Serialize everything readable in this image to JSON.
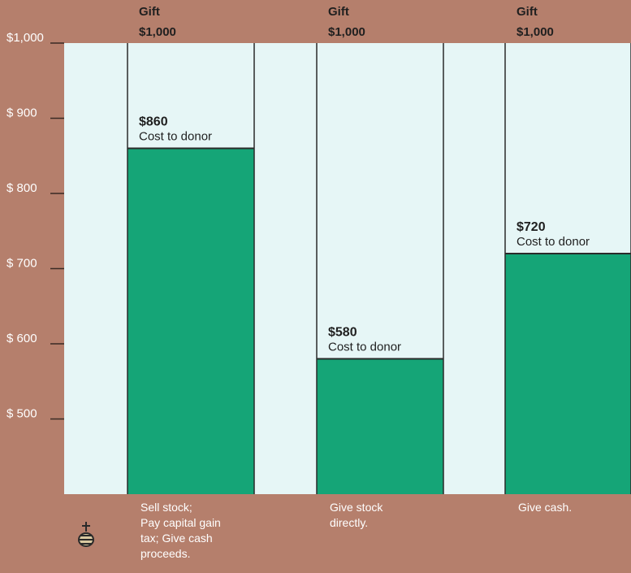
{
  "colors": {
    "background": "#b57f6c",
    "panel": "#e6f6f6",
    "bar": "#15a577",
    "divider": "#2a2a2a",
    "axis_text": "#ffffff",
    "label_text": "#1f1f1f"
  },
  "chart_data": {
    "type": "bar",
    "ylim": [
      400,
      1000
    ],
    "yticks": [
      500,
      600,
      700,
      800,
      900,
      1000
    ],
    "ytick_labels": [
      "$ 500",
      "$ 600",
      "$ 700",
      "$ 800",
      "$ 900",
      "$1,000"
    ],
    "grid": false,
    "gift_amount": 1000,
    "gift_label": "Gift",
    "gift_value_label": "$1,000",
    "categories": [
      "Sell stock; Pay capital gain tax; Give cash proceeds.",
      "Give stock directly.",
      "Give cash."
    ],
    "category_lines": [
      [
        "Sell stock;",
        "Pay capital gain",
        "tax; Give cash",
        "proceeds."
      ],
      [
        "Give stock",
        "directly."
      ],
      [
        "Give cash."
      ]
    ],
    "values": [
      860,
      580,
      720
    ],
    "value_labels": [
      "$860",
      "$580",
      "$720"
    ],
    "value_sublabel": "Cost to donor"
  },
  "icon": {
    "name": "weight-icon"
  }
}
